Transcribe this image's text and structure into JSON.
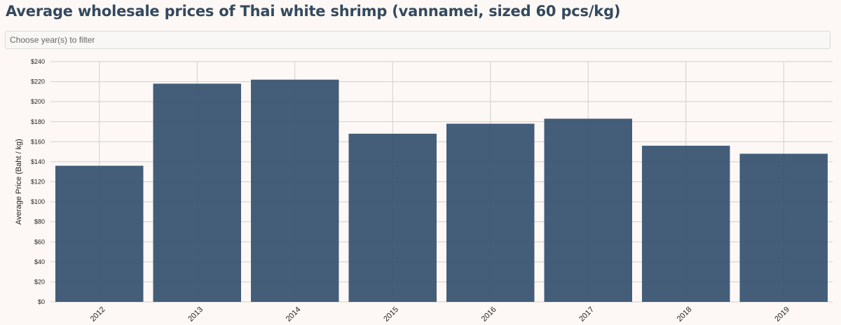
{
  "header": {
    "title": "Average wholesale prices of Thai white shrimp (vannamei, sized 60 pcs/kg)"
  },
  "filter": {
    "placeholder": "Choose year(s) to filter"
  },
  "colors": {
    "bar": "#34506f",
    "grid": "#d0d0d0",
    "axis_text": "#222222",
    "title": "#34495e"
  },
  "chart_data": {
    "type": "bar",
    "categories": [
      "2012",
      "2013",
      "2014",
      "2015",
      "2016",
      "2017",
      "2018",
      "2019"
    ],
    "values": [
      136,
      218,
      222,
      168,
      178,
      183,
      156,
      148
    ],
    "ylabel": "Average Price (Baht / kg)",
    "xlabel": "",
    "ylim": [
      0,
      240
    ],
    "yticks": [
      0,
      20,
      40,
      60,
      80,
      100,
      120,
      140,
      160,
      180,
      200,
      220,
      240
    ],
    "ytick_labels": [
      "$0",
      "$20",
      "$40",
      "$60",
      "$80",
      "$100",
      "$120",
      "$140",
      "$160",
      "$180",
      "$200",
      "$220",
      "$240"
    ],
    "grid": true
  }
}
